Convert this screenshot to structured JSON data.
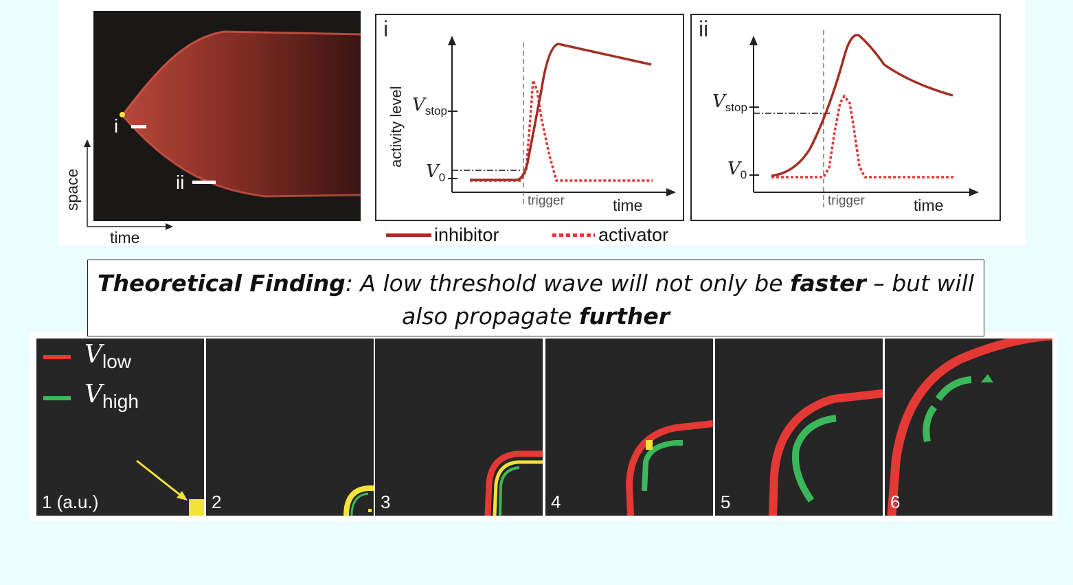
{
  "kymograph": {
    "label_i": "i",
    "label_ii": "ii",
    "y_axis_label": "space",
    "x_axis_label": "time"
  },
  "plot_i": {
    "panel_label": "i",
    "y_axis_label": "activity level",
    "x_axis_label": "time",
    "trigger_label": "trigger",
    "v_stop_main": "V",
    "v_stop_sub": "stop",
    "v0_main": "V",
    "v0_sub": "0"
  },
  "plot_ii": {
    "panel_label": "ii",
    "x_axis_label": "time",
    "trigger_label": "trigger",
    "v_stop_main": "V",
    "v_stop_sub": "stop",
    "v0_main": "V",
    "v0_sub": "0"
  },
  "legend": {
    "inhibitor": "inhibitor",
    "activator": "activator",
    "colors": {
      "inhibitor": "#a32d22",
      "activator": "#e0393a"
    }
  },
  "finding": {
    "lead": "Theoretical Finding",
    "part1": ": A low threshold wave will not only be ",
    "bold1": "faster",
    "part2": " – but will also propagate ",
    "bold2": "further"
  },
  "frames_legend": {
    "v_low_main": "V",
    "v_low_sub": "low",
    "v_high_main": "V",
    "v_high_sub": "high",
    "colors": {
      "low": "#e53935",
      "high": "#3cb85c",
      "overlap": "#f2e23a"
    }
  },
  "frames": [
    {
      "label": "1 (a.u.)"
    },
    {
      "label": "2"
    },
    {
      "label": "3"
    },
    {
      "label": "4"
    },
    {
      "label": "5"
    },
    {
      "label": "6"
    }
  ]
}
